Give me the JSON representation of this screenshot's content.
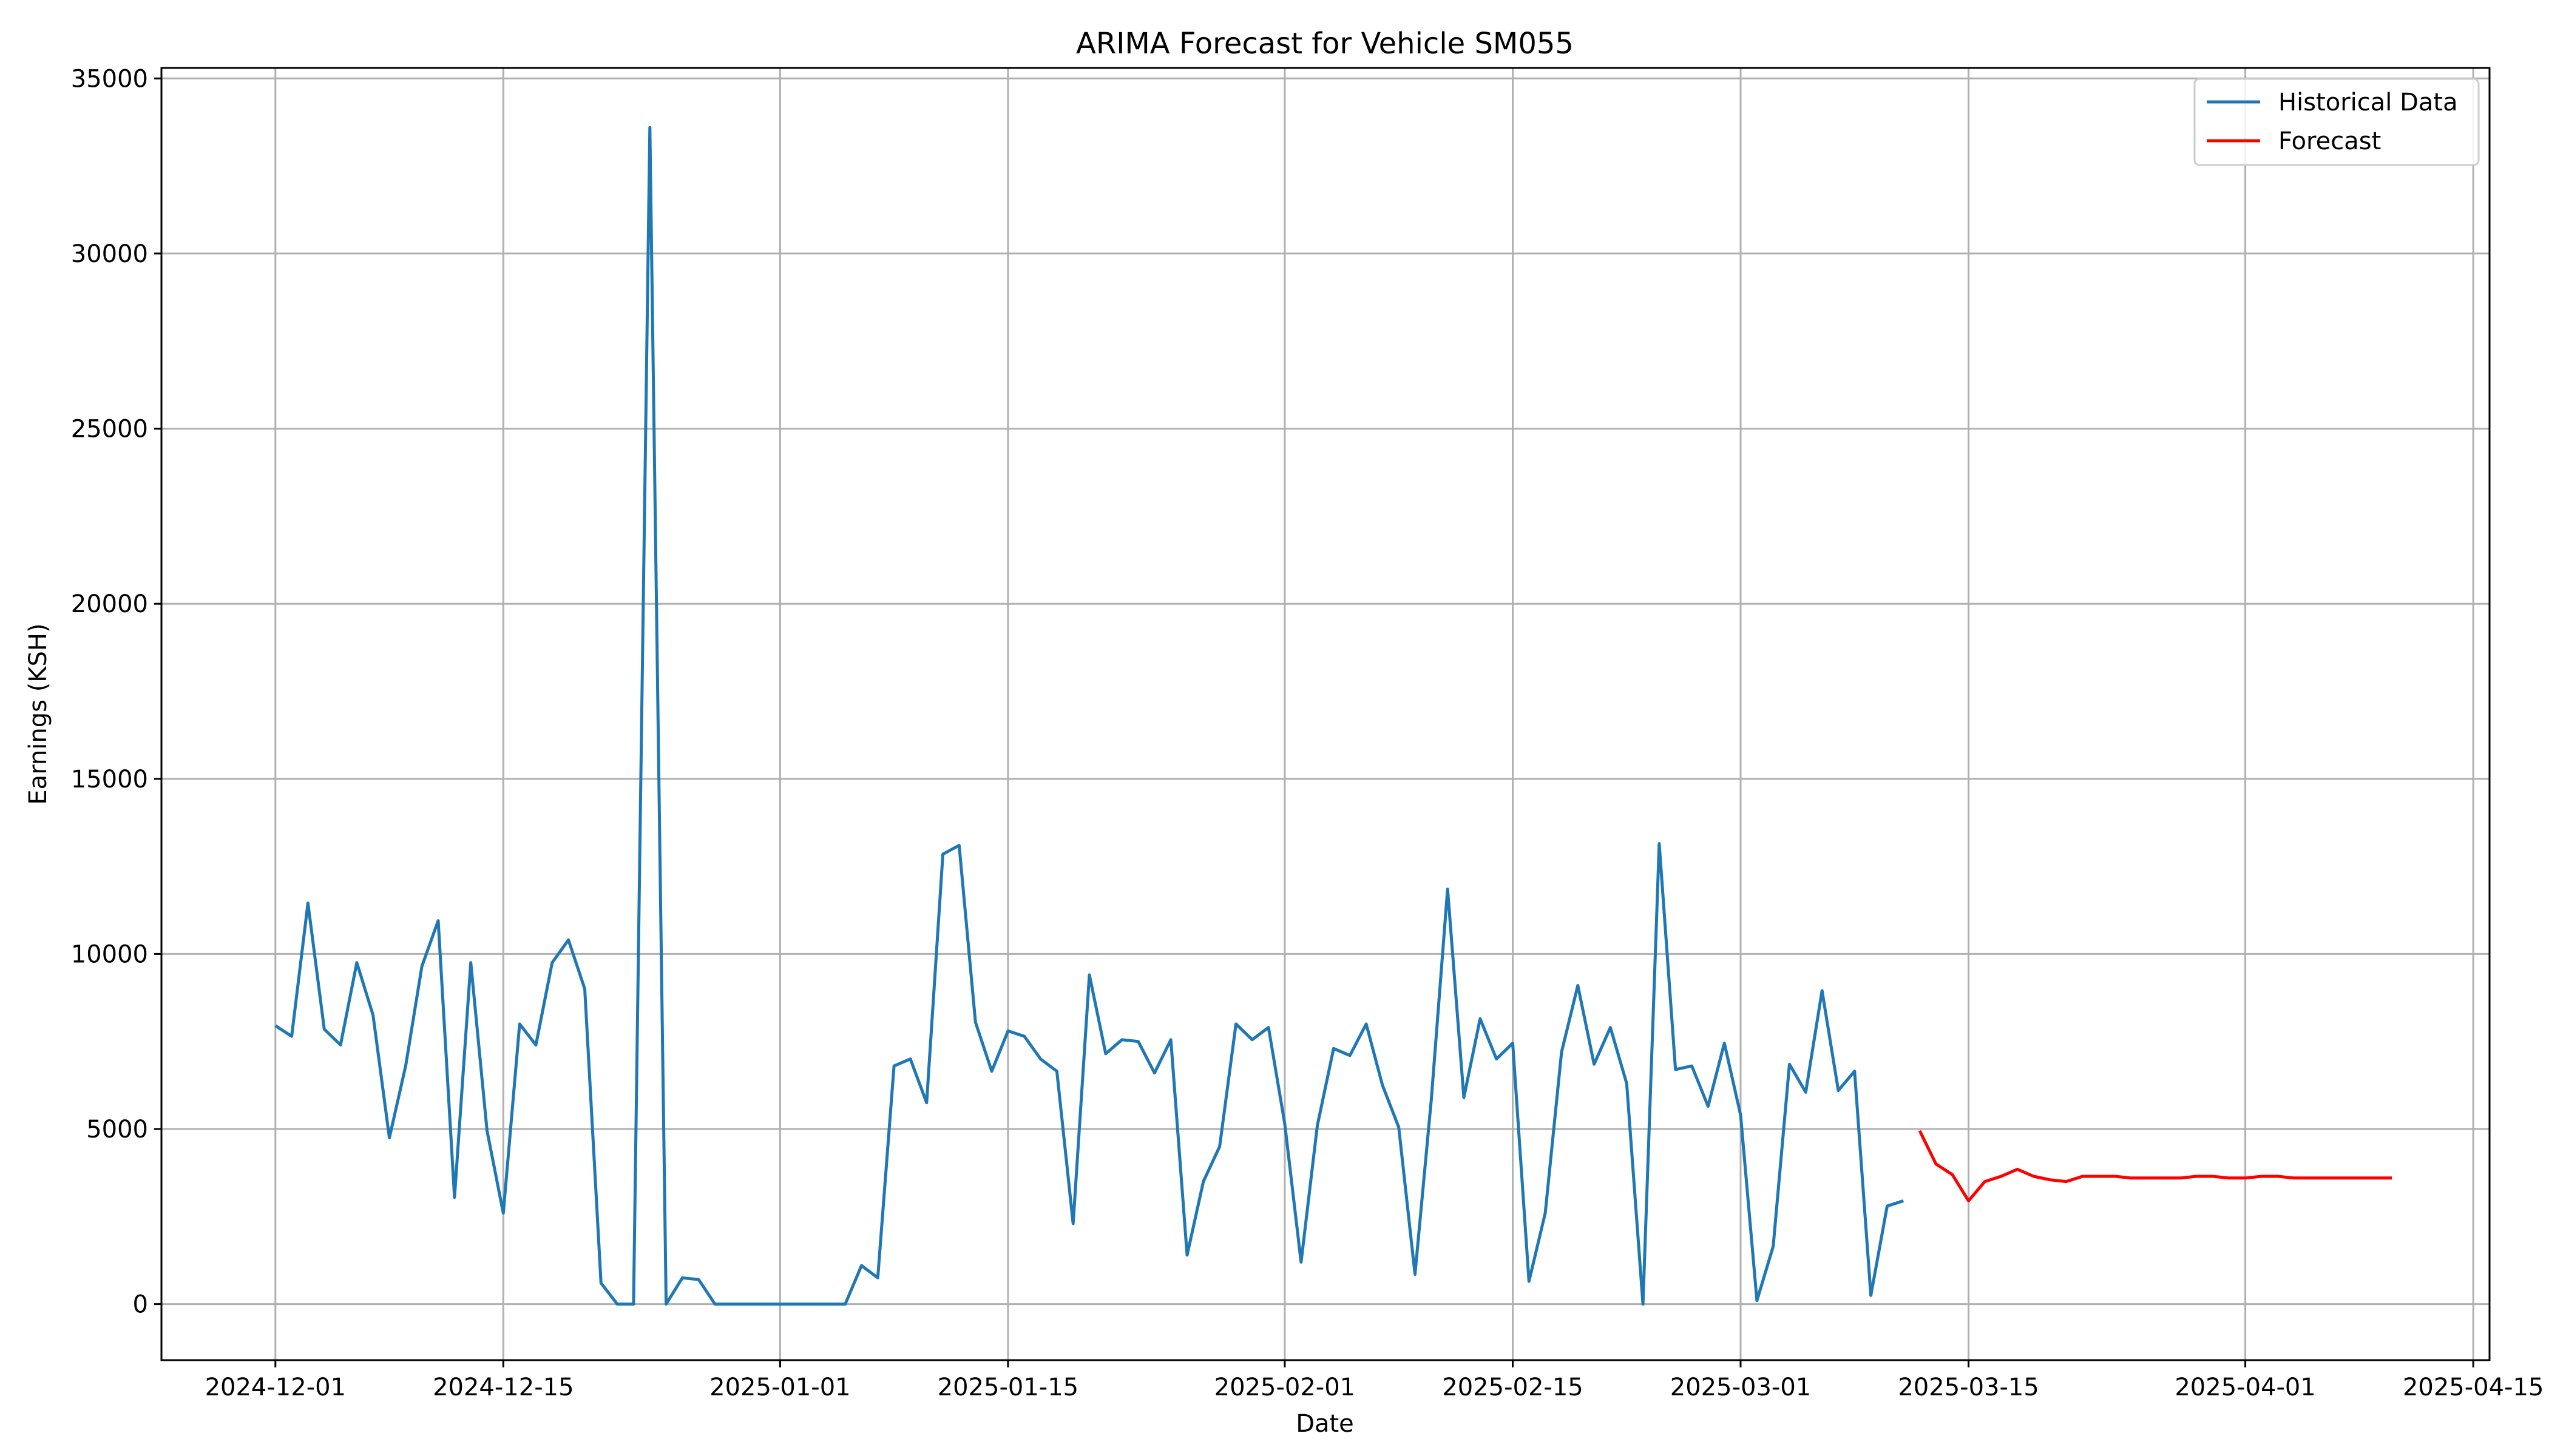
{
  "chart_data": {
    "type": "line",
    "title": "ARIMA Forecast for Vehicle SM055",
    "xlabel": "Date",
    "ylabel": "Earnings (KSH)",
    "xlim": [
      "2024-11-24",
      "2025-04-16"
    ],
    "ylim": [
      -1600,
      35300
    ],
    "x_ticks": [
      "2024-12-01",
      "2024-12-15",
      "2025-01-01",
      "2025-01-15",
      "2025-02-01",
      "2025-02-15",
      "2025-03-01",
      "2025-03-15",
      "2025-04-01",
      "2025-04-15"
    ],
    "y_ticks": [
      0,
      5000,
      10000,
      15000,
      20000,
      25000,
      30000,
      35000
    ],
    "grid": true,
    "legend_position": "top-right",
    "series": [
      {
        "name": "Historical Data",
        "color": "#1f77b4",
        "start_date": "2024-12-01",
        "values": [
          7950,
          7650,
          11450,
          7850,
          7400,
          9750,
          8250,
          4750,
          6800,
          9650,
          10950,
          3050,
          9750,
          4950,
          2600,
          8000,
          7400,
          9750,
          10400,
          9000,
          600,
          0,
          0,
          33600,
          0,
          750,
          700,
          0,
          0,
          0,
          0,
          0,
          0,
          0,
          0,
          0,
          1100,
          750,
          6800,
          7000,
          5750,
          12850,
          13100,
          8050,
          6650,
          7800,
          7650,
          7000,
          6650,
          2300,
          9400,
          7150,
          7550,
          7500,
          6600,
          7550,
          1400,
          3500,
          4500,
          8000,
          7550,
          7900,
          5150,
          1200,
          5100,
          7300,
          7100,
          8000,
          6250,
          5050,
          850,
          5850,
          11850,
          5900,
          8150,
          7000,
          7450,
          650,
          2600,
          7200,
          9100,
          6850,
          7900,
          6300,
          0,
          13150,
          6700,
          6800,
          5650,
          7450,
          5400,
          100,
          1650,
          6850,
          6050,
          8950,
          6100,
          6650,
          250,
          2800,
          2950
        ]
      },
      {
        "name": "Forecast",
        "color": "#ff0000",
        "start_date": "2025-03-12",
        "values": [
          4950,
          4000,
          3700,
          2950,
          3500,
          3650,
          3850,
          3650,
          3550,
          3500,
          3650,
          3650,
          3650,
          3600,
          3600,
          3600,
          3600,
          3650,
          3650,
          3600,
          3600,
          3650,
          3650,
          3600,
          3600,
          3600,
          3600,
          3600,
          3600,
          3600
        ]
      }
    ]
  }
}
